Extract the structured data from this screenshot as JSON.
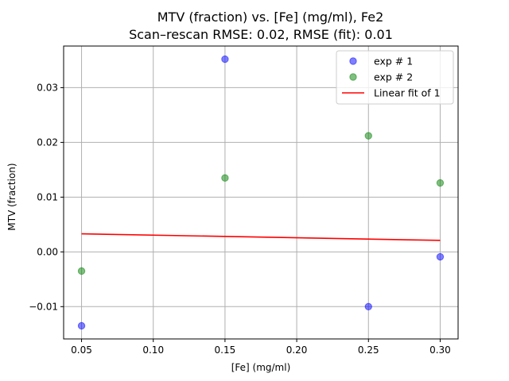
{
  "chart_data": {
    "type": "scatter",
    "title": "MTV (fraction) vs. [Fe] (mg/ml), Fe2",
    "subtitle": "Scan–rescan RMSE: 0.02, RMSE (fit): 0.01",
    "xlabel": "[Fe] (mg/ml)",
    "ylabel": "MTV (fraction)",
    "xlim": [
      0.0375,
      0.3125
    ],
    "ylim": [
      -0.0159,
      0.0376
    ],
    "xticks": [
      0.05,
      0.1,
      0.15,
      0.2,
      0.25,
      0.3
    ],
    "xtick_labels": [
      "0.05",
      "0.10",
      "0.15",
      "0.20",
      "0.25",
      "0.30"
    ],
    "yticks": [
      -0.01,
      0.0,
      0.01,
      0.02,
      0.03
    ],
    "ytick_labels": [
      "−0.01",
      "0.00",
      "0.01",
      "0.02",
      "0.03"
    ],
    "grid": true,
    "legend_position": "top-right",
    "series": [
      {
        "name": "exp # 1",
        "kind": "scatter",
        "color": "#0000ff",
        "x": [
          0.05,
          0.15,
          0.25,
          0.3
        ],
        "y": [
          -0.0135,
          0.0352,
          -0.01,
          -0.0009
        ]
      },
      {
        "name": "exp # 2",
        "kind": "scatter",
        "color": "#008000",
        "x": [
          0.05,
          0.15,
          0.25,
          0.3
        ],
        "y": [
          -0.0035,
          0.0135,
          0.0212,
          0.0126
        ]
      },
      {
        "name": "Linear fit of 1",
        "kind": "line",
        "color": "#ff0000",
        "x": [
          0.05,
          0.3
        ],
        "y": [
          0.0033,
          0.0021
        ]
      }
    ]
  }
}
